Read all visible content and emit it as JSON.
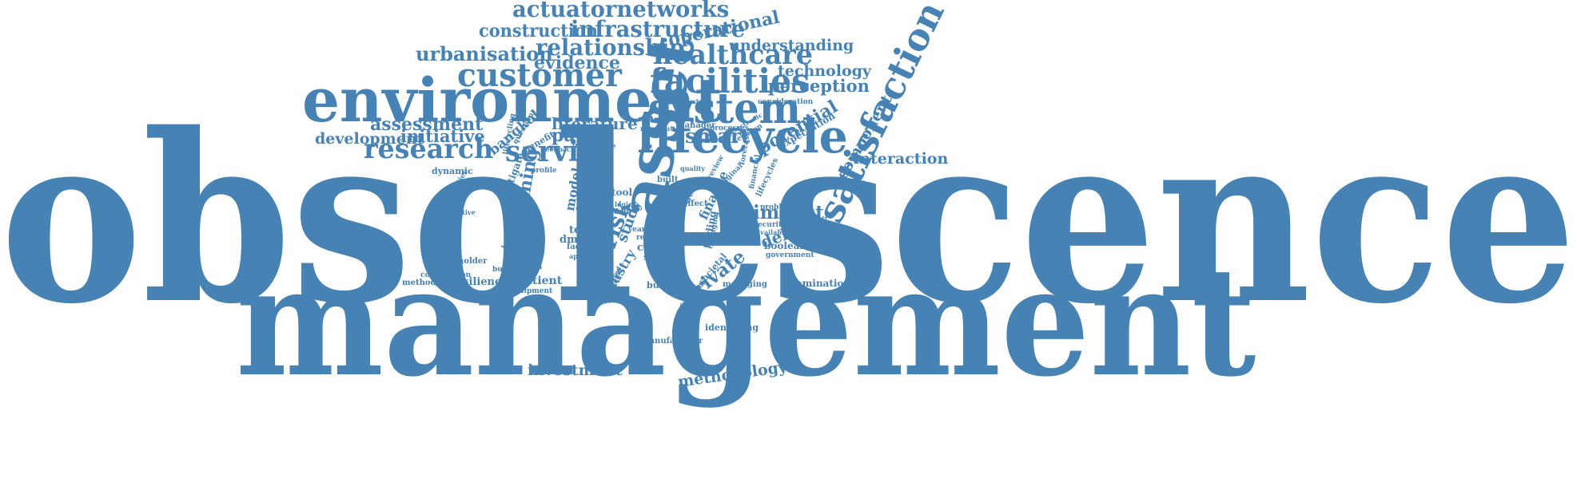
{
  "theme": {
    "color": "#4682b4",
    "background": "#ffffff"
  },
  "words": [
    "obsolescence",
    "management",
    "environment",
    "lifecycle",
    "system",
    "asset",
    "satisfaction",
    "facilities",
    "customer",
    "research",
    "service",
    "healthcare",
    "actuatornetworks",
    "infrastructure",
    "relationship",
    "urbanisation",
    "construction",
    "evidence",
    "operational",
    "understanding",
    "technology",
    "perception",
    "potential",
    "component",
    "interaction",
    "assessment",
    "initiative",
    "development",
    "literature",
    "paper",
    "smart",
    "bangkok",
    "impact",
    "delivery",
    "boolean",
    "private",
    "investment",
    "methodology",
    "patient",
    "resilience",
    "planning",
    "risk",
    "study",
    "industry",
    "finance",
    "model",
    "level",
    "testing",
    "dmsms",
    "current",
    "sensor",
    "assset",
    "facility",
    "examination",
    "identifying",
    "manufacturer",
    "managing",
    "building",
    "societal",
    "case",
    "built",
    "cities",
    "effect",
    "finding",
    "dynamic",
    "combination",
    "methodologies",
    "stakeholder",
    "businesses",
    "consideration",
    "expectation",
    "government",
    "security",
    "problem",
    "available",
    "tool",
    "year",
    "change",
    "result",
    "manager",
    "processes",
    "industries",
    "equipment",
    "analysis",
    "demand",
    "mitigate",
    "profile",
    "future",
    "question",
    "benefit",
    "lifecycles",
    "financial",
    "authorities",
    "proactive",
    "hospital",
    "limitation",
    "approach",
    "support",
    "explored",
    "changing",
    "quality",
    "original",
    "review",
    "feedback",
    "insight",
    "resultant",
    "decision",
    "electronic",
    "forecast",
    "data",
    "logic",
    "lifecycling",
    "additional",
    "catalogue"
  ]
}
